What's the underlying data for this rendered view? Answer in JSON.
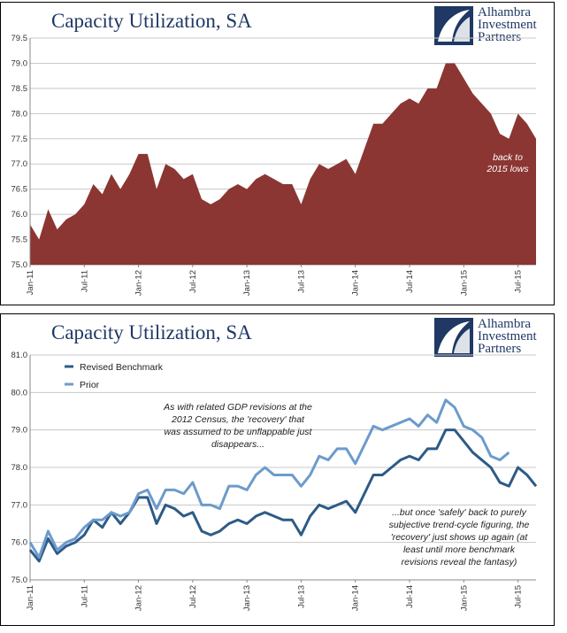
{
  "colors": {
    "area_fill": "#8b3632",
    "revised_line": "#2e5b86",
    "prior_line": "#6c9bcc",
    "title": "#1f3864",
    "grid": "#c8c8c8"
  },
  "logo": {
    "name": "Alhambra Investment Partners",
    "line1": "Alhambra",
    "line2": "Investment",
    "line3": "Partners"
  },
  "chart_data": [
    {
      "type": "area",
      "title": "Capacity Utilization, SA",
      "ylim": [
        75.0,
        79.5
      ],
      "y_ticks": [
        "75.0",
        "75.5",
        "76.0",
        "76.5",
        "77.0",
        "77.5",
        "78.0",
        "78.5",
        "79.0",
        "79.5"
      ],
      "x_tick_labels": [
        "Jan-11",
        "Jul-11",
        "Jan-12",
        "Jul-12",
        "Jan-13",
        "Jul-13",
        "Jan-14",
        "Jul-14",
        "Jan-15",
        "Jul-15"
      ],
      "x_start": "Jan-11",
      "grid": true,
      "annotation": "back to 2015 lows",
      "annotation_lines": [
        "back to",
        "2015 lows"
      ],
      "series": [
        {
          "values": [
            75.8,
            75.5,
            76.1,
            75.7,
            75.9,
            76.0,
            76.2,
            76.6,
            76.4,
            76.8,
            76.5,
            76.8,
            77.2,
            77.2,
            76.5,
            77.0,
            76.9,
            76.7,
            76.8,
            76.3,
            76.2,
            76.3,
            76.5,
            76.6,
            76.5,
            76.7,
            76.8,
            76.7,
            76.6,
            76.6,
            76.2,
            76.7,
            77.0,
            76.9,
            77.0,
            77.1,
            76.8,
            77.3,
            77.8,
            77.8,
            78.0,
            78.2,
            78.3,
            78.2,
            78.5,
            78.5,
            79.0,
            79.0,
            78.7,
            78.4,
            78.2,
            78.0,
            77.6,
            77.5,
            78.0,
            77.8,
            77.5
          ]
        }
      ]
    },
    {
      "type": "line",
      "title": "Capacity Utilization, SA",
      "ylim": [
        75.0,
        81.0
      ],
      "y_ticks": [
        "75.0",
        "76.0",
        "77.0",
        "78.0",
        "79.0",
        "80.0",
        "81.0"
      ],
      "x_tick_labels": [
        "Jan-11",
        "Jul-11",
        "Jan-12",
        "Jul-12",
        "Jan-13",
        "Jul-13",
        "Jan-14",
        "Jul-14",
        "Jan-15",
        "Jul-15"
      ],
      "x_start": "Jan-11",
      "grid": true,
      "legend_position": "top-left",
      "annotations": [
        {
          "text": "As with related GDP revisions at the 2012 Census, the 'recovery' that was assumed to be unflappable just disappears...",
          "lines": [
            "As with related GDP revisions at the",
            "2012 Census, the 'recovery' that",
            "was assumed to be unflappable just",
            "disappears..."
          ]
        },
        {
          "text": "...but once 'safely' back to purely subjective trend-cycle figuring, the 'recovery' just shows up again (at least until more benchmark revisions reveal the fantasy)",
          "lines": [
            "...but once 'safely' back to purely",
            "subjective trend-cycle figuring, the",
            "'recovery' just shows up again (at",
            "least until more benchmark",
            "revisions reveal the fantasy)"
          ]
        }
      ],
      "series": [
        {
          "name": "Revised Benchmark",
          "values": [
            75.8,
            75.5,
            76.1,
            75.7,
            75.9,
            76.0,
            76.2,
            76.6,
            76.4,
            76.8,
            76.5,
            76.8,
            77.2,
            77.2,
            76.5,
            77.0,
            76.9,
            76.7,
            76.8,
            76.3,
            76.2,
            76.3,
            76.5,
            76.6,
            76.5,
            76.7,
            76.8,
            76.7,
            76.6,
            76.6,
            76.2,
            76.7,
            77.0,
            76.9,
            77.0,
            77.1,
            76.8,
            77.3,
            77.8,
            77.8,
            78.0,
            78.2,
            78.3,
            78.2,
            78.5,
            78.5,
            79.0,
            79.0,
            78.7,
            78.4,
            78.2,
            78.0,
            77.6,
            77.5,
            78.0,
            77.8,
            77.5
          ]
        },
        {
          "name": "Prior",
          "values": [
            76.0,
            75.6,
            76.3,
            75.8,
            76.0,
            76.1,
            76.4,
            76.6,
            76.6,
            76.8,
            76.7,
            76.8,
            77.3,
            77.4,
            76.9,
            77.4,
            77.4,
            77.3,
            77.6,
            77.0,
            77.0,
            76.9,
            77.5,
            77.5,
            77.4,
            77.8,
            78.0,
            77.8,
            77.8,
            77.8,
            77.5,
            77.8,
            78.3,
            78.2,
            78.5,
            78.5,
            78.1,
            78.6,
            79.1,
            79.0,
            79.1,
            79.2,
            79.3,
            79.1,
            79.4,
            79.2,
            79.8,
            79.6,
            79.1,
            79.0,
            78.8,
            78.3,
            78.2,
            78.4
          ]
        }
      ]
    }
  ]
}
